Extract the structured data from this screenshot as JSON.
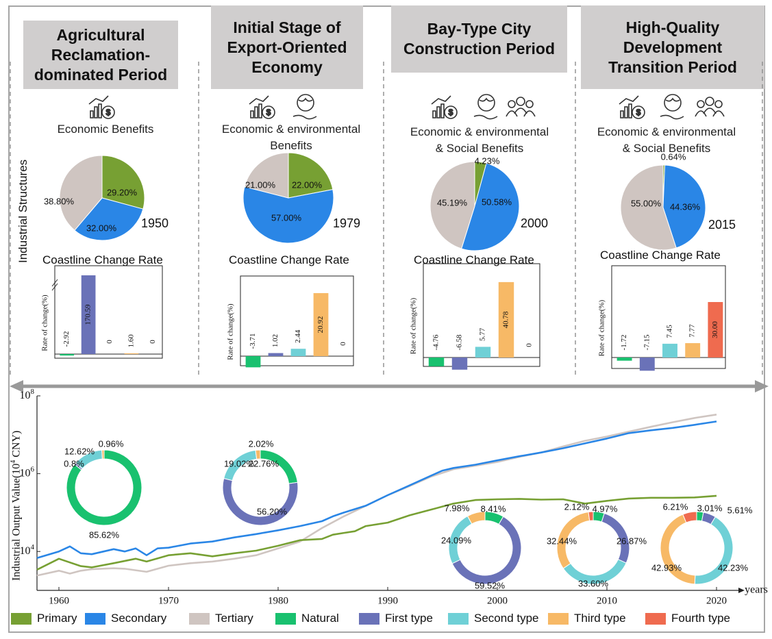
{
  "periods": [
    {
      "title_lines": [
        "Agricultural",
        "Reclamation-",
        "dominated Period"
      ],
      "benefits": [
        "Economic Benefits"
      ],
      "icons": [
        "chart-money-icon"
      ],
      "year": "1950",
      "pie": [
        {
          "label": "29.20%",
          "value": 29.2,
          "color": "#77a033"
        },
        {
          "label": "32.00%",
          "value": 32.0,
          "color": "#2a86e6"
        },
        {
          "label": "38.80%",
          "value": 38.8,
          "color": "#cfc5c1"
        }
      ],
      "bars": [
        {
          "value": -2.92,
          "label": "-2.92",
          "color": "#19c16f"
        },
        {
          "value": 170.59,
          "label": "170.59",
          "color": "#6a72b8"
        },
        {
          "value": 0,
          "label": "0",
          "color": "#6fd0d6"
        },
        {
          "value": 1.6,
          "label": "1.60",
          "color": "#f7b966"
        },
        {
          "value": 0,
          "label": "0",
          "color": "#ef6b4f"
        }
      ]
    },
    {
      "title_lines": [
        "Initial  Stage of",
        "Export-Oriented",
        "Economy"
      ],
      "benefits": [
        "Economic & environmental",
        "Benefits"
      ],
      "icons": [
        "chart-money-icon",
        "globe-hand-icon"
      ],
      "year": "1979",
      "pie": [
        {
          "label": "22.00%",
          "value": 22.0,
          "color": "#77a033"
        },
        {
          "label": "57.00%",
          "value": 57.0,
          "color": "#2a86e6"
        },
        {
          "label": "21.00%",
          "value": 21.0,
          "color": "#cfc5c1"
        }
      ],
      "bars": [
        {
          "value": -3.71,
          "label": "-3.71",
          "color": "#19c16f"
        },
        {
          "value": 1.02,
          "label": "1.02",
          "color": "#6a72b8"
        },
        {
          "value": 2.44,
          "label": "2.44",
          "color": "#6fd0d6"
        },
        {
          "value": 20.92,
          "label": "20.92",
          "color": "#f7b966"
        },
        {
          "value": 0,
          "label": "0",
          "color": "#ef6b4f"
        }
      ]
    },
    {
      "title_lines": [
        "Bay-Type City",
        "Construction Period"
      ],
      "benefits": [
        "Economic & environmental",
        "& Social Benefits"
      ],
      "icons": [
        "chart-money-icon",
        "globe-hand-icon",
        "people-icon"
      ],
      "year": "2000",
      "pie": [
        {
          "label": "4.23%",
          "value": 4.23,
          "color": "#77a033"
        },
        {
          "label": "50.58%",
          "value": 50.58,
          "color": "#2a86e6"
        },
        {
          "label": "45.19%",
          "value": 45.19,
          "color": "#cfc5c1"
        }
      ],
      "bars": [
        {
          "value": -4.76,
          "label": "-4.76",
          "color": "#19c16f"
        },
        {
          "value": -6.58,
          "label": "-6.58",
          "color": "#6a72b8"
        },
        {
          "value": 5.77,
          "label": "5.77",
          "color": "#6fd0d6"
        },
        {
          "value": 40.78,
          "label": "40.78",
          "color": "#f7b966"
        },
        {
          "value": 0,
          "label": "0",
          "color": "#ef6b4f"
        }
      ]
    },
    {
      "title_lines": [
        "High-Quality",
        "Development",
        "Transition Period"
      ],
      "benefits": [
        "Economic & environmental",
        "& Social Benefits"
      ],
      "icons": [
        "chart-money-icon",
        "globe-hand-icon",
        "people-icon"
      ],
      "year": "2015",
      "pie": [
        {
          "label": "0.64%",
          "value": 0.64,
          "color": "#77a033"
        },
        {
          "label": "44.36%",
          "value": 44.36,
          "color": "#2a86e6"
        },
        {
          "label": "55.00%",
          "value": 55.0,
          "color": "#cfc5c1"
        }
      ],
      "bars": [
        {
          "value": -1.72,
          "label": "-1.72",
          "color": "#19c16f"
        },
        {
          "value": -7.15,
          "label": "-7.15",
          "color": "#6a72b8"
        },
        {
          "value": 7.45,
          "label": "7.45",
          "color": "#6fd0d6"
        },
        {
          "value": 7.77,
          "label": "7.77",
          "color": "#f7b966"
        },
        {
          "value": 30.0,
          "label": "30.00",
          "color": "#ef6b4f"
        }
      ]
    }
  ],
  "left_label": "Industrial Structures",
  "ccr_title": "Coastline Change Rate",
  "bar_ylabel": "Rate of change(%)",
  "chart_data": {
    "type": "line",
    "yscale": "log",
    "ylabel_base": "Industrial Output Value(10",
    "ylabel_exp": "4",
    "ylabel_tail": " CNY)",
    "xlabel": "years",
    "xlim": [
      1958,
      2022
    ],
    "ylim_exp": [
      3,
      8
    ],
    "x_ticks": [
      "1960",
      "1970",
      "1980",
      "1990",
      "2000",
      "2010",
      "2020"
    ],
    "x_tick_values": [
      1960,
      1970,
      1980,
      1990,
      2000,
      2010,
      2020
    ],
    "y_ticks": [
      {
        "base": "10",
        "exp": "4",
        "value": 4
      },
      {
        "base": "10",
        "exp": "6",
        "value": 6
      },
      {
        "base": "10",
        "exp": "8",
        "value": 8
      }
    ],
    "series": [
      {
        "name": "Primary",
        "color": "#77a033",
        "x": [
          1958,
          1960,
          1962,
          1963,
          1965,
          1967,
          1968,
          1970,
          1972,
          1974,
          1976,
          1978,
          1980,
          1981,
          1982,
          1984,
          1985,
          1986,
          1987,
          1988,
          1990,
          1992,
          1994,
          1996,
          1998,
          2000,
          2002,
          2004,
          2006,
          2008,
          2010,
          2012,
          2014,
          2016,
          2018,
          2020
        ],
        "y": [
          3400,
          6500,
          4200,
          3900,
          5000,
          6500,
          5500,
          8000,
          9000,
          7500,
          9000,
          10500,
          14000,
          16500,
          19500,
          21000,
          27000,
          30000,
          33000,
          45000,
          55000,
          85000,
          120000,
          170000,
          210000,
          220000,
          225000,
          215000,
          220000,
          170000,
          200000,
          230000,
          240000,
          240000,
          245000,
          270000
        ]
      },
      {
        "name": "Secondary",
        "color": "#2a86e6",
        "x": [
          1958,
          1960,
          1961,
          1962,
          1963,
          1965,
          1966,
          1967,
          1968,
          1969,
          1970,
          1972,
          1974,
          1976,
          1978,
          1980,
          1982,
          1984,
          1985,
          1986,
          1988,
          1990,
          1992,
          1994,
          1995,
          1996,
          1998,
          2000,
          2002,
          2004,
          2006,
          2008,
          2010,
          2012,
          2014,
          2016,
          2018,
          2020
        ],
        "y": [
          6800,
          10000,
          13500,
          9000,
          8500,
          11500,
          10000,
          12000,
          8000,
          12000,
          12500,
          16000,
          18000,
          23000,
          28000,
          35000,
          45000,
          60000,
          80000,
          100000,
          150000,
          280000,
          500000,
          900000,
          1200000,
          1400000,
          1700000,
          2200000,
          2800000,
          3500000,
          4500000,
          6000000,
          8000000,
          11000000,
          13000000,
          15000000,
          18000000,
          22000000
        ]
      },
      {
        "name": "Tertiary",
        "color": "#cfc5c1",
        "x": [
          1958,
          1960,
          1961,
          1962,
          1963,
          1965,
          1966,
          1968,
          1970,
          1972,
          1974,
          1976,
          1978,
          1980,
          1982,
          1984,
          1986,
          1988,
          1990,
          1992,
          1994,
          1996,
          1998,
          2000,
          2002,
          2004,
          2006,
          2008,
          2010,
          2012,
          2014,
          2016,
          2018,
          2020
        ],
        "y": [
          2400,
          3200,
          2700,
          3200,
          3500,
          3700,
          3600,
          3000,
          4300,
          5000,
          5500,
          6500,
          8000,
          12000,
          18000,
          40000,
          80000,
          150000,
          280000,
          480000,
          850000,
          1300000,
          1600000,
          2000000,
          2700000,
          3500000,
          5000000,
          7000000,
          9000000,
          12000000,
          16000000,
          21000000,
          27000000,
          33000000
        ]
      }
    ],
    "donuts": [
      {
        "year": 1958,
        "slices": [
          {
            "value": 85.62,
            "label": "85.62%",
            "color": "#19c16f"
          },
          {
            "value": 0.8,
            "label": "0.8%",
            "color": "#6a72b8"
          },
          {
            "value": 12.62,
            "label": "12.62%",
            "color": "#6fd0d6"
          },
          {
            "value": 0.96,
            "label": "0.96%",
            "color": "#f7b966"
          }
        ]
      },
      {
        "year": 1979,
        "slices": [
          {
            "value": 22.76,
            "label": "22.76%",
            "color": "#19c16f"
          },
          {
            "value": 56.2,
            "label": "56.20%",
            "color": "#6a72b8"
          },
          {
            "value": 19.02,
            "label": "19.02%",
            "color": "#6fd0d6"
          },
          {
            "value": 2.02,
            "label": "2.02%",
            "color": "#f7b966"
          }
        ]
      },
      {
        "year": 2000,
        "slices": [
          {
            "value": 8.41,
            "label": "8.41%",
            "color": "#19c16f"
          },
          {
            "value": 59.52,
            "label": "59.52%",
            "color": "#6a72b8"
          },
          {
            "value": 24.09,
            "label": "24.09%",
            "color": "#6fd0d6"
          },
          {
            "value": 7.98,
            "label": "7.98%",
            "color": "#f7b966"
          }
        ]
      },
      {
        "year": 2010,
        "slices": [
          {
            "value": 4.97,
            "label": "4.97%",
            "color": "#19c16f"
          },
          {
            "value": 26.87,
            "label": "26.87%",
            "color": "#6a72b8"
          },
          {
            "value": 33.6,
            "label": "33.60%",
            "color": "#6fd0d6"
          },
          {
            "value": 32.44,
            "label": "32.44%",
            "color": "#f7b966"
          },
          {
            "value": 2.12,
            "label": "2.12%",
            "color": "#ef6b4f"
          }
        ]
      },
      {
        "year": 2020,
        "slices": [
          {
            "value": 3.01,
            "label": "3.01%",
            "color": "#19c16f"
          },
          {
            "value": 5.61,
            "label": "5.61%",
            "color": "#6a72b8"
          },
          {
            "value": 42.23,
            "label": "42.23%",
            "color": "#6fd0d6"
          },
          {
            "value": 42.93,
            "label": "42.93%",
            "color": "#f7b966"
          },
          {
            "value": 6.21,
            "label": "6.21%",
            "color": "#ef6b4f"
          }
        ]
      }
    ]
  },
  "legend": [
    {
      "label": "Primary",
      "color": "#77a033"
    },
    {
      "label": "Secondary",
      "color": "#2a86e6"
    },
    {
      "label": "Tertiary",
      "color": "#cfc5c1"
    },
    {
      "label": "Natural",
      "color": "#19c16f"
    },
    {
      "label": "First type",
      "color": "#6a72b8"
    },
    {
      "label": "Second type",
      "color": "#6fd0d6"
    },
    {
      "label": "Third type",
      "color": "#f7b966"
    },
    {
      "label": "Fourth type",
      "color": "#ef6b4f"
    }
  ]
}
